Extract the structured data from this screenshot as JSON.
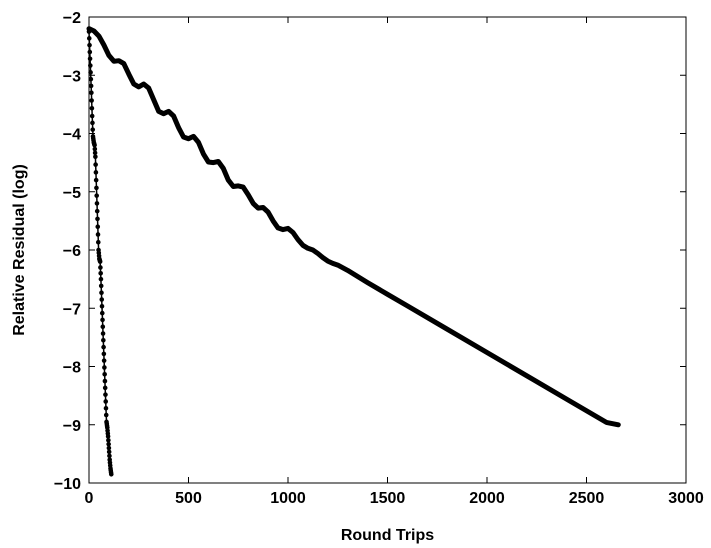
{
  "chart_data": {
    "type": "line",
    "title": "",
    "xlabel": "Round Trips",
    "ylabel": "Relative Residual (log)",
    "xlim": [
      0,
      3000
    ],
    "ylim": [
      -10,
      -2
    ],
    "xticks": [
      0,
      500,
      1000,
      1500,
      2000,
      2500,
      3000
    ],
    "yticks": [
      -10,
      -9,
      -8,
      -7,
      -6,
      -5,
      -4,
      -3,
      -2
    ],
    "xtick_labels": [
      "0",
      "500",
      "1000",
      "1500",
      "2000",
      "2500",
      "3000"
    ],
    "ytick_labels": [
      "−10",
      "−9",
      "−8",
      "−7",
      "−6",
      "−5",
      "−4",
      "−3",
      "−2"
    ],
    "grid": false,
    "legend": "none",
    "line_color": "#000000",
    "series": [
      {
        "marker": "dot",
        "x": [
          0,
          4,
          8,
          12,
          16,
          20,
          24,
          28,
          32,
          36,
          40,
          44,
          48,
          52,
          56,
          60,
          64,
          68,
          72,
          76,
          80,
          84,
          88,
          92,
          96,
          100,
          104,
          108,
          112
        ],
        "y": [
          -2.25,
          -2.6,
          -2.95,
          -3.3,
          -3.7,
          -4.05,
          -4.15,
          -4.2,
          -4.4,
          -4.8,
          -5.2,
          -5.6,
          -6.0,
          -6.15,
          -6.2,
          -6.5,
          -6.85,
          -7.2,
          -7.55,
          -7.9,
          -8.25,
          -8.6,
          -8.95,
          -9.05,
          -9.2,
          -9.4,
          -9.6,
          -9.75,
          -9.85
        ]
      },
      {
        "marker": "thick-line",
        "x": [
          0,
          25,
          50,
          75,
          100,
          125,
          150,
          175,
          200,
          225,
          250,
          275,
          300,
          325,
          350,
          375,
          400,
          425,
          450,
          475,
          500,
          525,
          550,
          575,
          600,
          625,
          650,
          675,
          700,
          725,
          750,
          775,
          800,
          825,
          850,
          875,
          900,
          925,
          950,
          975,
          1000,
          1025,
          1050,
          1075,
          1100,
          1125,
          1150,
          1175,
          1200,
          1225,
          1250,
          1300,
          1400,
          1500,
          1600,
          1800,
          2000,
          2200,
          2400,
          2600,
          2660
        ],
        "y": [
          -2.2,
          -2.24,
          -2.33,
          -2.48,
          -2.66,
          -2.76,
          -2.75,
          -2.8,
          -2.98,
          -3.15,
          -3.2,
          -3.15,
          -3.22,
          -3.42,
          -3.62,
          -3.66,
          -3.62,
          -3.7,
          -3.9,
          -4.06,
          -4.09,
          -4.05,
          -4.15,
          -4.35,
          -4.49,
          -4.5,
          -4.48,
          -4.6,
          -4.8,
          -4.91,
          -4.9,
          -4.92,
          -5.05,
          -5.2,
          -5.28,
          -5.27,
          -5.35,
          -5.5,
          -5.62,
          -5.65,
          -5.63,
          -5.7,
          -5.82,
          -5.92,
          -5.97,
          -6.0,
          -6.06,
          -6.13,
          -6.19,
          -6.23,
          -6.26,
          -6.35,
          -6.56,
          -6.76,
          -6.96,
          -7.36,
          -7.76,
          -8.16,
          -8.56,
          -8.96,
          -9.0
        ]
      }
    ]
  }
}
